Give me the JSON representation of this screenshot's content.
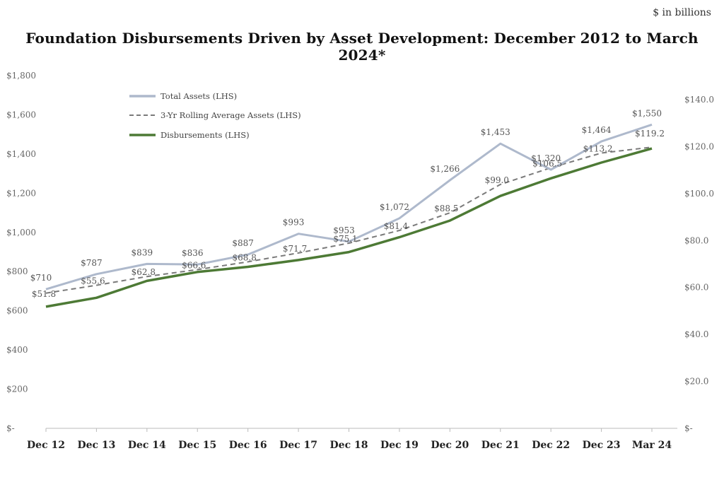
{
  "units_note": "$ in billions",
  "chart_data": {
    "type": "line",
    "title": "Foundation Disbursements Driven by Asset Development: December 2012 to March 2024*",
    "categories": [
      "Dec 12",
      "Dec 13",
      "Dec 14",
      "Dec 15",
      "Dec 16",
      "Dec 17",
      "Dec 18",
      "Dec 19",
      "Dec 20",
      "Dec 21",
      "Dec 22",
      "Dec 23",
      "Mar 24"
    ],
    "left_axis": {
      "ylim": [
        0,
        1800
      ],
      "ticks": [
        "$-",
        "$200",
        "$400",
        "$600",
        "$800",
        "$1,000",
        "$1,200",
        "$1,400",
        "$1,600",
        "$1,800"
      ],
      "tick_values": [
        0,
        200,
        400,
        600,
        800,
        1000,
        1200,
        1400,
        1600,
        1800
      ]
    },
    "right_axis": {
      "ylim": [
        0,
        140
      ],
      "ticks": [
        "$-",
        "$20.0",
        "$40.0",
        "$60.0",
        "$80.0",
        "$100.0",
        "$120.0",
        "$140.0"
      ],
      "tick_values": [
        0,
        20,
        40,
        60,
        80,
        100,
        120,
        140
      ]
    },
    "series": [
      {
        "name": "Total Assets (LHS)",
        "axis": "left",
        "color": "#aeb9cc",
        "style": "solid",
        "values": [
          710,
          787,
          839,
          836,
          887,
          993,
          953,
          1072,
          1266,
          1453,
          1320,
          1464,
          1550
        ],
        "labels": [
          "$710",
          "$787",
          "$839",
          "$836",
          "$887",
          "$993",
          "$953",
          "$1,072",
          "$1,266",
          "$1,453",
          "$1,320",
          "$1,464",
          "$1,550"
        ]
      },
      {
        "name": "3-Yr Rolling Average Assets (LHS)",
        "axis": "left",
        "color": "#7a7a7a",
        "style": "dashed",
        "values": [
          690,
          730,
          775,
          810,
          850,
          895,
          945,
          1010,
          1100,
          1245,
          1330,
          1405,
          1435
        ]
      },
      {
        "name": "Disbursements (LHS)",
        "axis": "right",
        "color": "#4d7a35",
        "style": "solid",
        "values": [
          51.8,
          55.6,
          62.8,
          66.6,
          68.8,
          71.7,
          75.1,
          81.4,
          88.5,
          99.0,
          106.5,
          113.2,
          119.2
        ],
        "labels": [
          "$51.8",
          "$55.6",
          "$62.8",
          "$66.6",
          "$68.8",
          "$71.7",
          "$75.1",
          "$81.4",
          "$88.5",
          "$99.0",
          "$106.5",
          "$113.2",
          "$119.2"
        ]
      }
    ]
  }
}
